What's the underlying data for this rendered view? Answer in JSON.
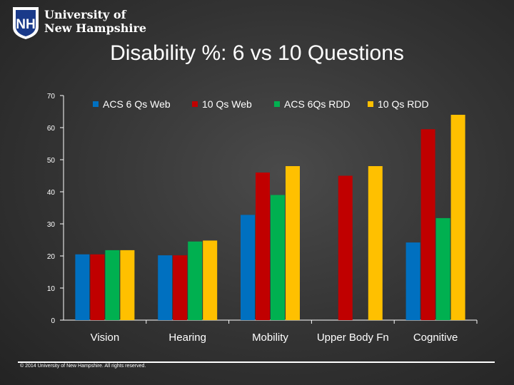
{
  "header": {
    "logo_line1": "University of",
    "logo_line2": "New Hampshire",
    "logo_monogram": "NH",
    "logo_icon": "unh-shield-logo-icon"
  },
  "title": "Disability %: 6 vs 10 Questions",
  "footer": {
    "copyright": "© 2014 University of New Hampshire. All rights reserved."
  },
  "chart_data": {
    "type": "bar",
    "title": "Disability %: 6 vs 10 Questions",
    "xlabel": "",
    "ylabel": "",
    "ylim": [
      0,
      70
    ],
    "yticks": [
      0,
      10,
      20,
      30,
      40,
      50,
      60,
      70
    ],
    "grid": false,
    "legend_position": "top",
    "categories": [
      "Vision",
      "Hearing",
      "Mobility",
      "Upper Body Fn",
      "Cognitive"
    ],
    "series": [
      {
        "name": "ACS 6 Qs Web",
        "color": "#0070c0",
        "values": [
          20.5,
          20.2,
          32.8,
          null,
          24.2
        ]
      },
      {
        "name": "10 Qs Web",
        "color": "#c00000",
        "values": [
          20.5,
          20.2,
          46.0,
          45.0,
          59.5
        ]
      },
      {
        "name": "ACS 6Qs RDD",
        "color": "#00b050",
        "values": [
          21.8,
          24.5,
          39.0,
          null,
          31.8
        ]
      },
      {
        "name": "10 Qs RDD",
        "color": "#ffc000",
        "values": [
          21.8,
          24.8,
          48.0,
          48.0,
          64.0
        ]
      }
    ]
  }
}
